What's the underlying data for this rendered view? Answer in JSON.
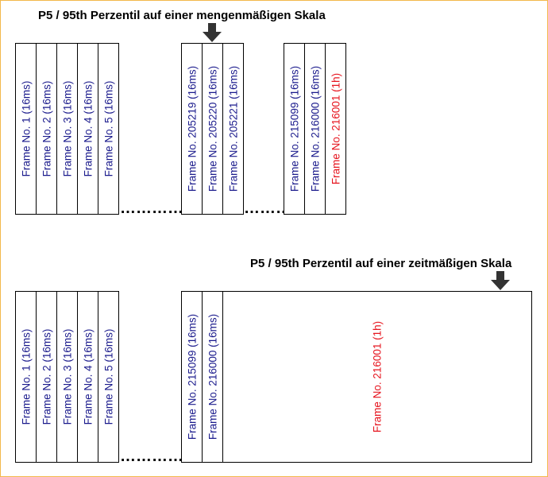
{
  "colors": {
    "normal_text": "#1a1a8c",
    "highlight_text": "#e6141e",
    "border": "#f2b84b"
  },
  "top": {
    "title": "P5 / 95th Perzentil auf einer mengenmäßigen Skala",
    "frames_a": [
      "Frame No. 1 (16ms)",
      "Frame No. 2 (16ms)",
      "Frame No. 3 (16ms)",
      "Frame No. 4 (16ms)",
      "Frame No. 5 (16ms)"
    ],
    "frames_b": [
      "Frame No. 205219 (16ms)",
      "Frame No. 205220 (16ms)",
      "Frame No. 205221 (16ms)"
    ],
    "frames_c": [
      "Frame No. 215099 (16ms)",
      "Frame No. 216000 (16ms)",
      "Frame No. 216001 (1h)"
    ],
    "ellipsis": "……………"
  },
  "bottom": {
    "title": "P5 / 95th Perzentil auf einer zeitmäßigen Skala",
    "frames_a": [
      "Frame No. 1 (16ms)",
      "Frame No. 2 (16ms)",
      "Frame No. 3 (16ms)",
      "Frame No. 4 (16ms)",
      "Frame No. 5 (16ms)"
    ],
    "frames_b": [
      "Frame No. 215099 (16ms)",
      "Frame No. 216000 (16ms)"
    ],
    "frame_long": "Frame No. 216001 (1h)",
    "ellipsis": "……………"
  }
}
